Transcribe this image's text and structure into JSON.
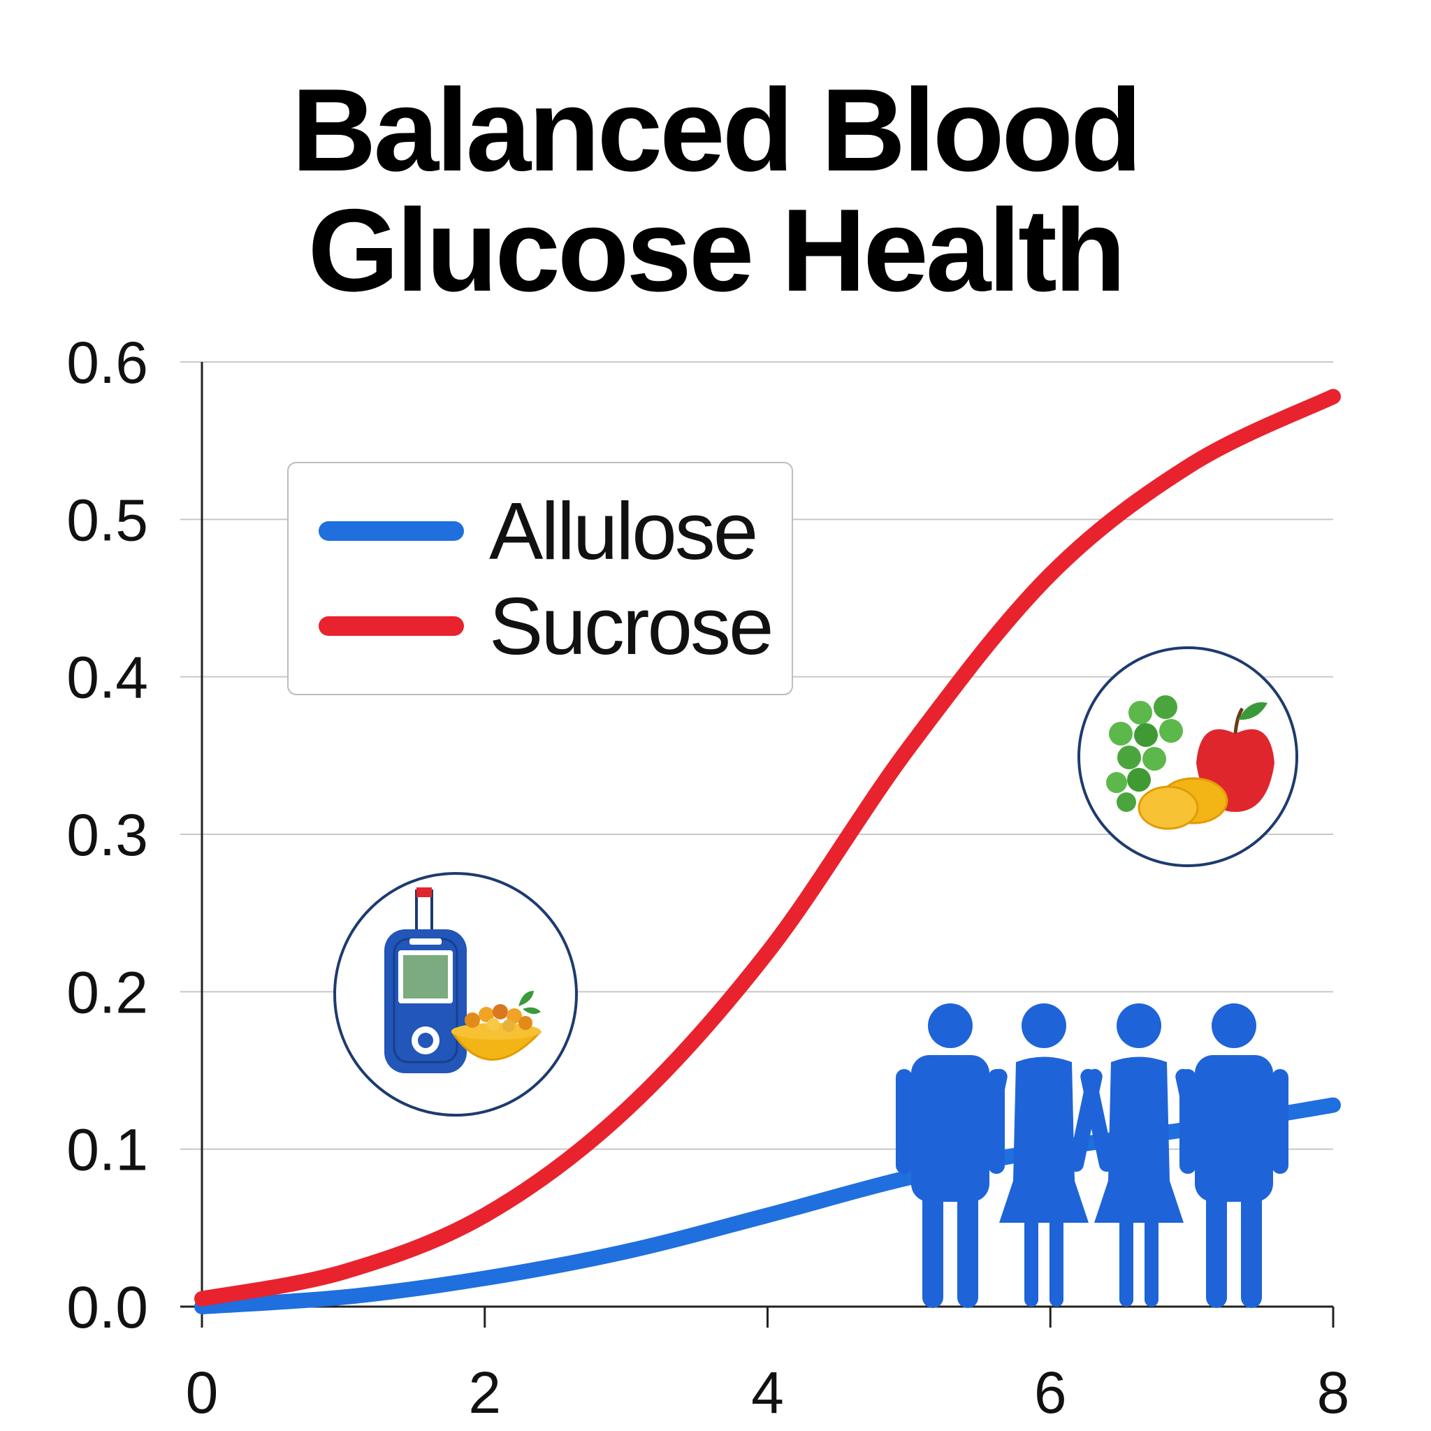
{
  "title": {
    "line1": "Balanced Blood",
    "line2": "Glucose Health"
  },
  "chart_data": {
    "type": "line",
    "title": "Balanced Blood Glucose Health",
    "xlabel": "",
    "ylabel": "",
    "xlim": [
      0,
      8
    ],
    "ylim": [
      0,
      0.6
    ],
    "xticks": [
      0,
      2,
      4,
      6,
      8
    ],
    "yticks": [
      "0.0",
      "0.1",
      "0.2",
      "0.3",
      "0.4",
      "0.5",
      "0.6"
    ],
    "grid": true,
    "legend_position": "top-left",
    "series": [
      {
        "name": "Allulose",
        "color": "#1f6fde",
        "x": [
          0,
          1,
          2,
          3,
          4,
          5,
          6,
          7,
          8
        ],
        "y": [
          0.0,
          0.006,
          0.018,
          0.035,
          0.058,
          0.082,
          0.1,
          0.113,
          0.128
        ]
      },
      {
        "name": "Sucrose",
        "color": "#e8232e",
        "x": [
          0,
          1,
          2,
          3,
          4,
          5,
          6,
          7,
          8
        ],
        "y": [
          0.005,
          0.022,
          0.058,
          0.125,
          0.225,
          0.355,
          0.465,
          0.535,
          0.578
        ]
      }
    ]
  },
  "icons": {
    "meter": "glucose-meter-icon",
    "bowl": "food-bowl-icon",
    "fruit": "fruit-icon",
    "people": "people-group-icon"
  },
  "colors": {
    "grid": "#c8c8c8",
    "axis": "#222222",
    "circle_border": "#1d3b6e",
    "people": "#1e64d8"
  }
}
